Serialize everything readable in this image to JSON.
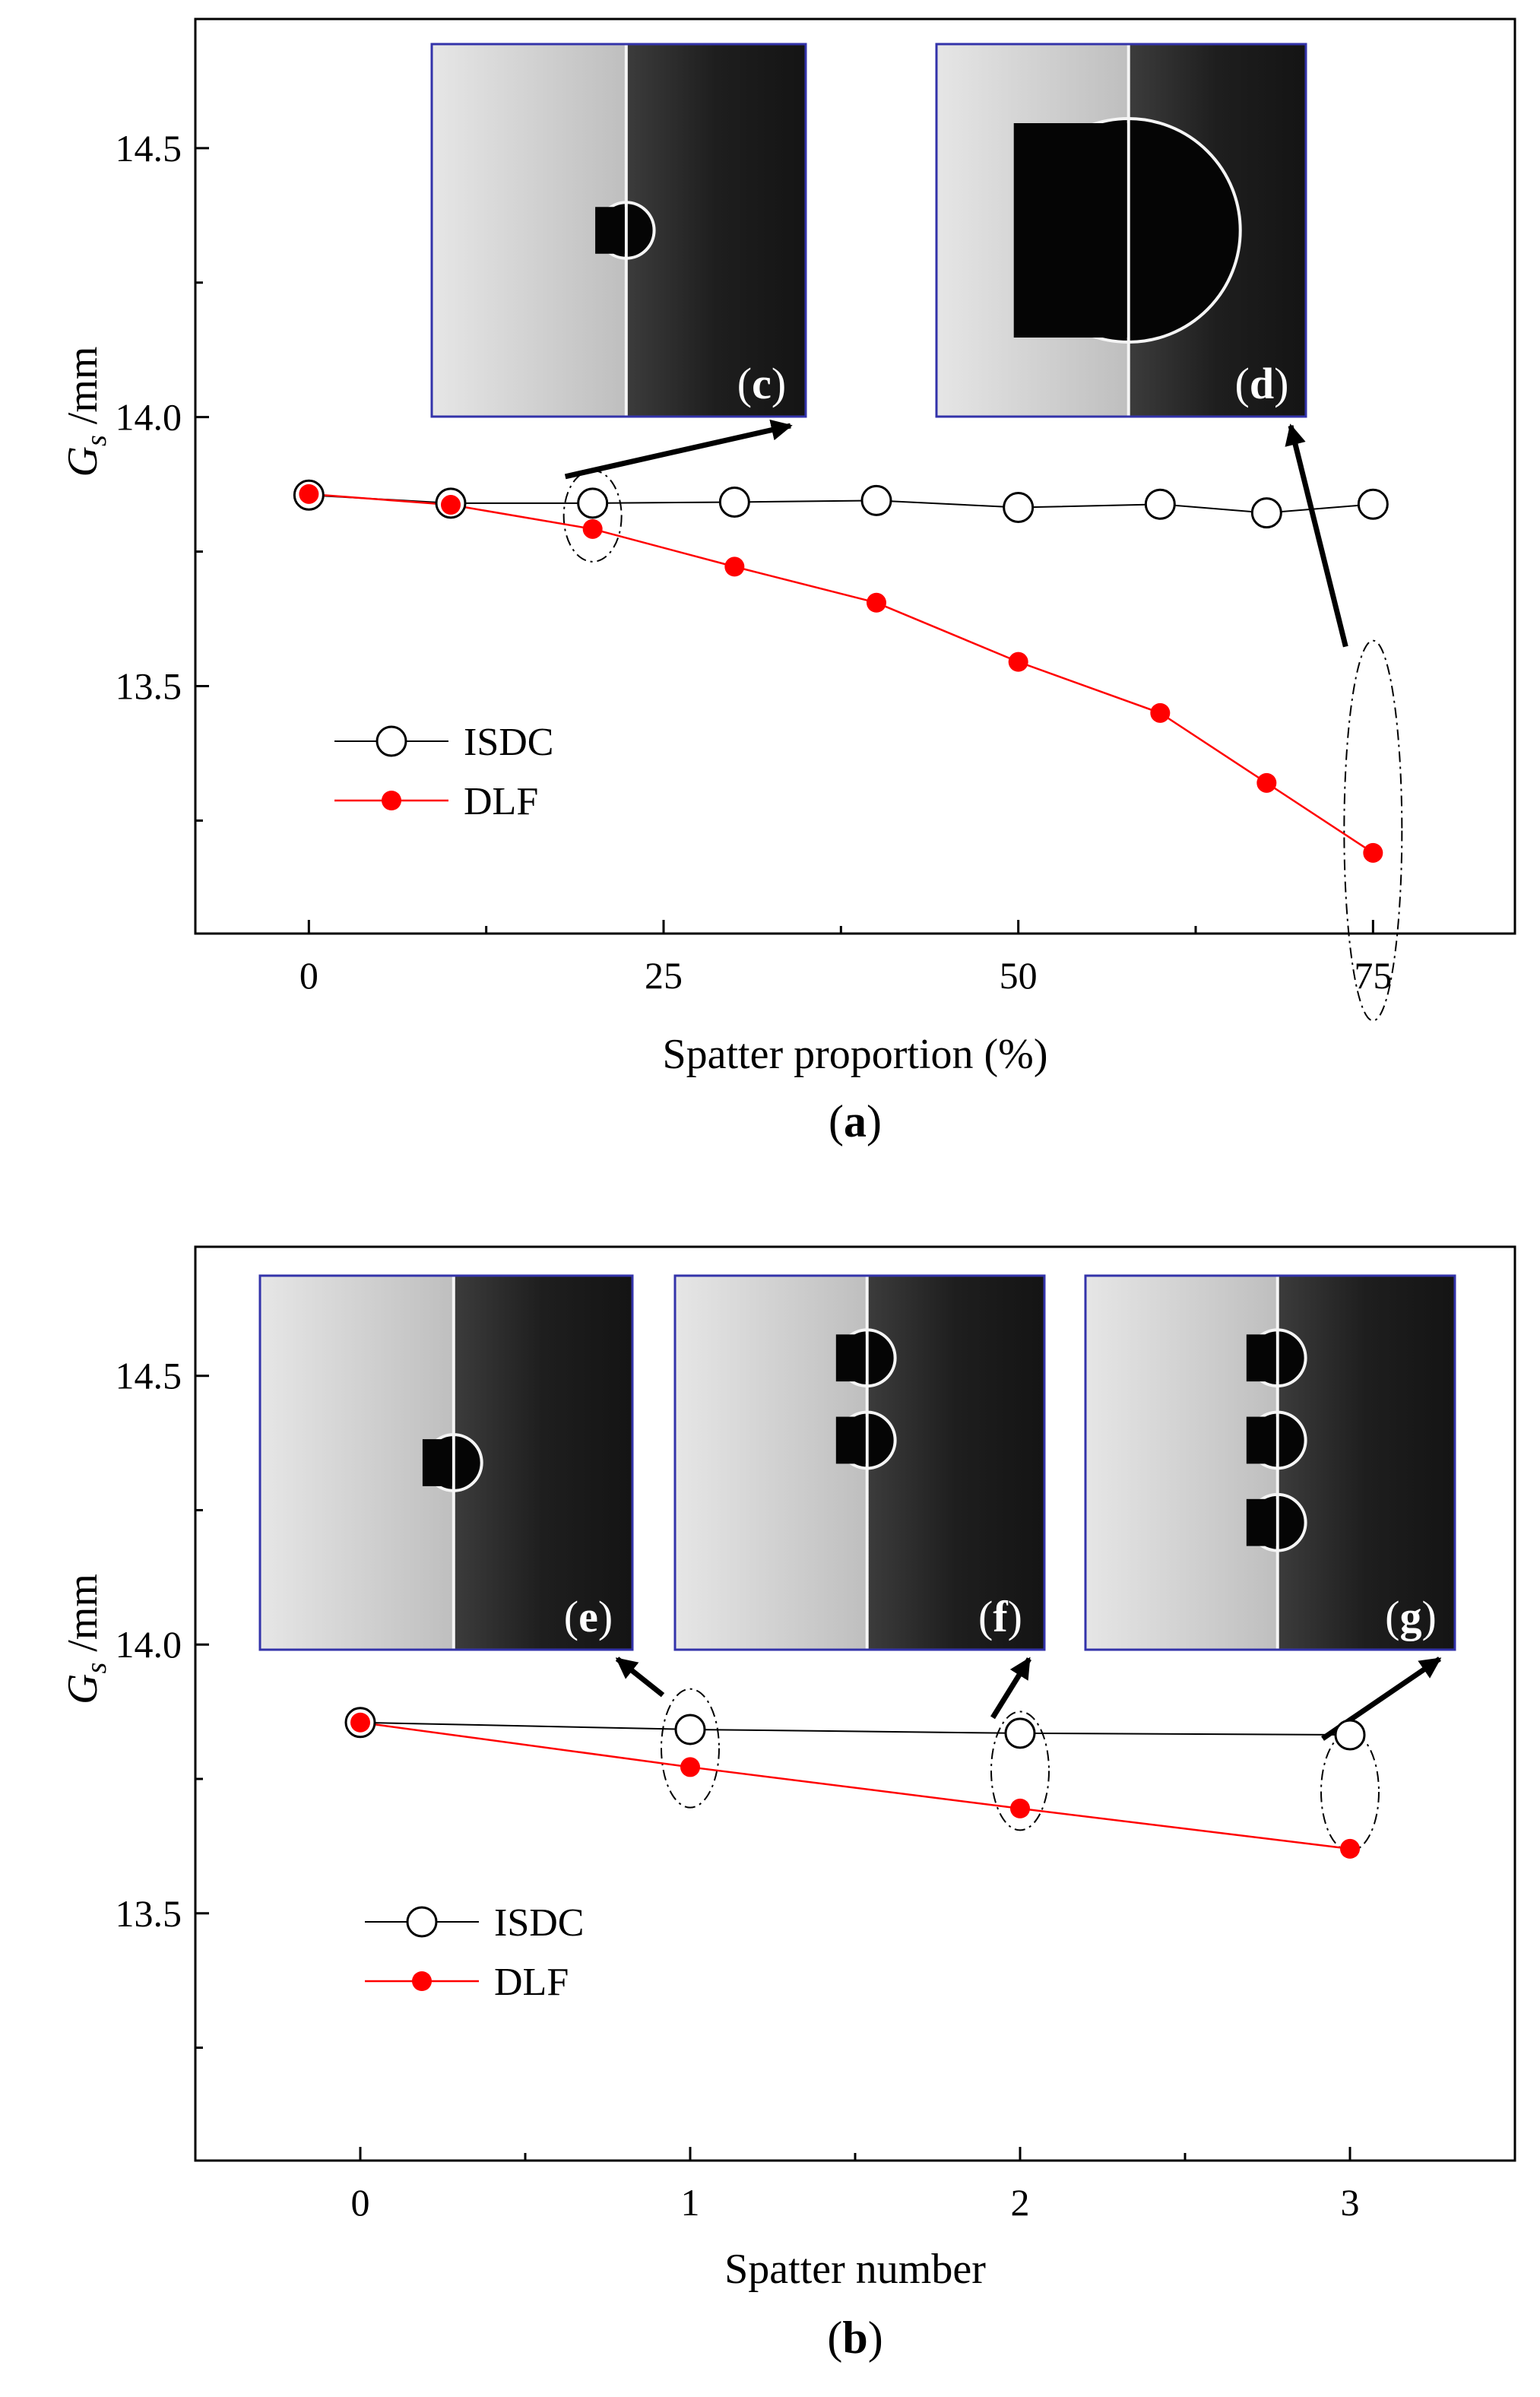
{
  "colors": {
    "isdc_line": "#000000",
    "isdc_marker_fill": "#ffffff",
    "dlf_line": "#ff0000",
    "dlf_marker": "#ff0000",
    "inset_border": "#3333aa",
    "inset_bright": "#e6e6e6",
    "inset_dark": "#141414"
  },
  "chart_data": [
    {
      "type": "line",
      "panel_label": "a",
      "title": "",
      "xlabel": "Spatter proportion (%)",
      "ylabel_symbol": "G",
      "ylabel_subscript": "s",
      "ylabel_unit": " /mm",
      "xlim": [
        -8,
        85
      ],
      "ylim": [
        13.04,
        14.74
      ],
      "xticks": [
        0,
        25,
        50,
        75
      ],
      "xtick_labels": [
        "0",
        "25",
        "50",
        "75"
      ],
      "yticks": [
        13.5,
        14.0,
        14.5
      ],
      "ytick_labels": [
        "13.5",
        "14.0",
        "14.5"
      ],
      "legend_position": "lower-left",
      "series": [
        {
          "name": "ISDC",
          "marker": "open-circle",
          "x": [
            0,
            10,
            20,
            30,
            40,
            50,
            60,
            67.5,
            75
          ],
          "values": [
            13.855,
            13.84,
            13.84,
            13.842,
            13.845,
            13.832,
            13.838,
            13.822,
            13.838
          ]
        },
        {
          "name": "DLF",
          "marker": "filled-circle",
          "x": [
            0,
            10,
            20,
            30,
            40,
            50,
            60,
            67.5,
            75
          ],
          "values": [
            13.857,
            13.837,
            13.792,
            13.722,
            13.655,
            13.545,
            13.45,
            13.32,
            13.19
          ]
        }
      ],
      "highlight_x": [
        20,
        75
      ],
      "insets": [
        {
          "label": "c",
          "spatters": 1,
          "size": "small",
          "points_to_x": 20
        },
        {
          "label": "d",
          "spatters": 1,
          "size": "large",
          "points_to_x": 75
        }
      ]
    },
    {
      "type": "line",
      "panel_label": "b",
      "title": "",
      "xlabel": "Spatter number",
      "ylabel_symbol": "G",
      "ylabel_subscript": "s",
      "ylabel_unit": " /mm",
      "xlim": [
        -0.5,
        3.5
      ],
      "ylim": [
        13.04,
        14.74
      ],
      "xticks": [
        0,
        1,
        2,
        3
      ],
      "xtick_labels": [
        "0",
        "1",
        "2",
        "3"
      ],
      "yticks": [
        13.5,
        14.0,
        14.5
      ],
      "ytick_labels": [
        "13.5",
        "14.0",
        "14.5"
      ],
      "legend_position": "lower-left",
      "series": [
        {
          "name": "ISDC",
          "marker": "open-circle",
          "x": [
            0,
            1,
            2,
            3
          ],
          "values": [
            13.855,
            13.842,
            13.835,
            13.832
          ]
        },
        {
          "name": "DLF",
          "marker": "filled-circle",
          "x": [
            0,
            1,
            2,
            3
          ],
          "values": [
            13.855,
            13.772,
            13.695,
            13.62
          ]
        }
      ],
      "highlight_x": [
        1,
        2,
        3
      ],
      "insets": [
        {
          "label": "e",
          "spatters": 1,
          "size": "small",
          "points_to_x": 1
        },
        {
          "label": "f",
          "spatters": 2,
          "size": "small",
          "points_to_x": 2
        },
        {
          "label": "g",
          "spatters": 3,
          "size": "small",
          "points_to_x": 3
        }
      ]
    }
  ]
}
